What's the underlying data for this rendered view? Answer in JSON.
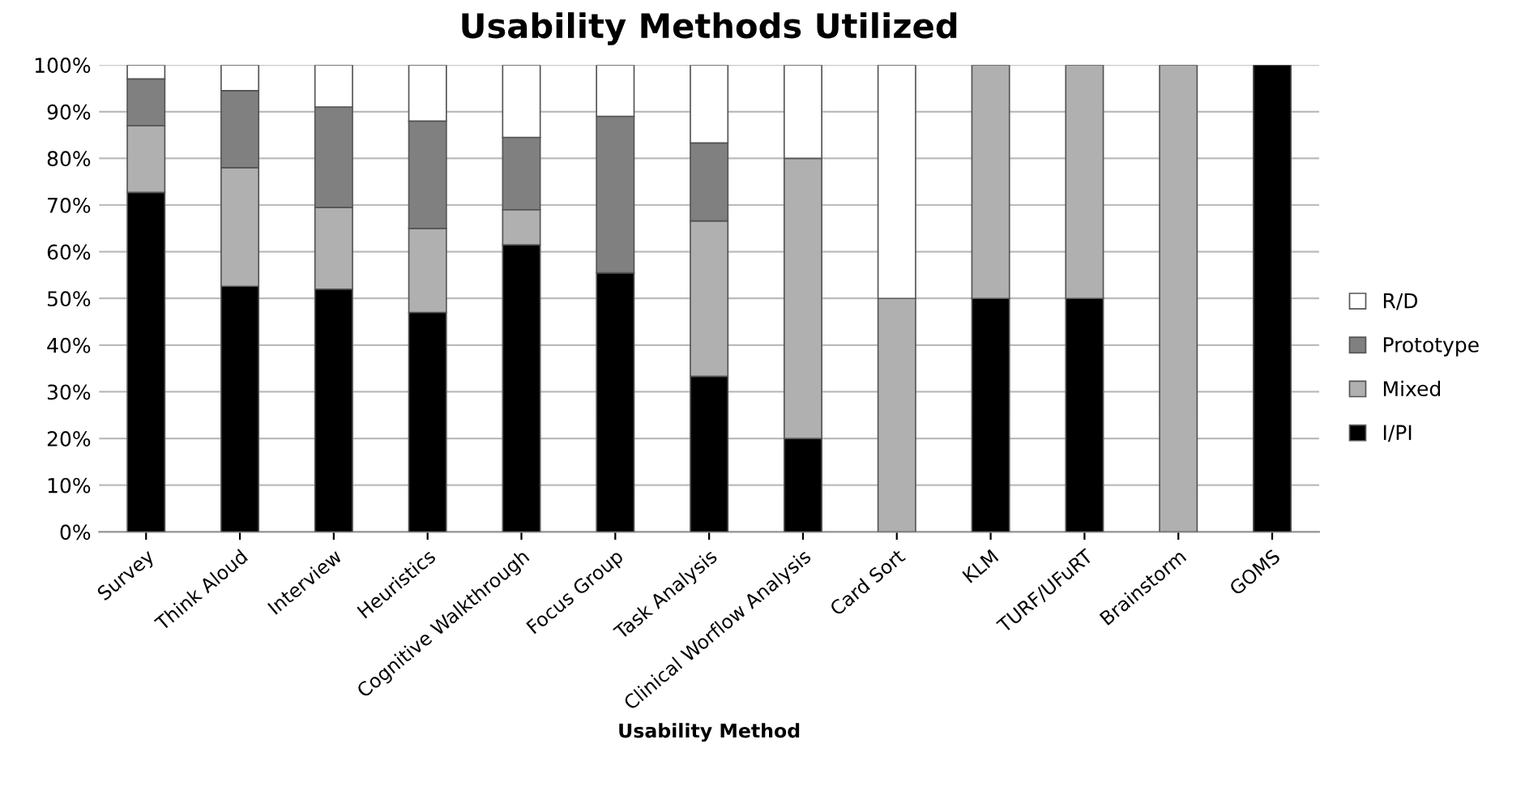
{
  "chart_data": {
    "type": "bar",
    "stacked": true,
    "title": "Usability Methods Utilized",
    "xlabel": "Usability Method",
    "categories": [
      "Survey",
      "Think Aloud",
      "Interview",
      "Heuristics",
      "Cognitive Walkthrough",
      "Focus Group",
      "Task Analysis",
      "Clinical Worflow Analysis",
      "Card Sort",
      "KLM",
      "TURF/UFuRT",
      "Brainstorm",
      "GOMS"
    ],
    "series": [
      {
        "name": "I/PI",
        "color": "#000000",
        "values": [
          72.7,
          52.6,
          52,
          47,
          61.5,
          55.5,
          33.3,
          20,
          0,
          50,
          50,
          0,
          100
        ]
      },
      {
        "name": "Mixed",
        "color": "#b0b0b0",
        "values": [
          14.3,
          25.4,
          17.5,
          18,
          7.5,
          0,
          33.3,
          60,
          50,
          50,
          50,
          100,
          0
        ]
      },
      {
        "name": "Prototype",
        "color": "#808080",
        "values": [
          10,
          16.5,
          21.5,
          23,
          15.5,
          33.5,
          16.7,
          0,
          0,
          0,
          0,
          0,
          0
        ]
      },
      {
        "name": "R/D",
        "color": "#ffffff",
        "values": [
          3,
          5.5,
          9,
          12,
          15.5,
          11,
          16.7,
          20,
          50,
          0,
          0,
          0,
          0
        ]
      }
    ],
    "ylim": [
      0,
      100
    ],
    "yticks": [
      {
        "value": 0,
        "label": "0%"
      },
      {
        "value": 10,
        "label": "10%"
      },
      {
        "value": 20,
        "label": "20%"
      },
      {
        "value": 30,
        "label": "30%"
      },
      {
        "value": 40,
        "label": "40%"
      },
      {
        "value": 50,
        "label": "50%"
      },
      {
        "value": 60,
        "label": "60%"
      },
      {
        "value": 70,
        "label": "70%"
      },
      {
        "value": 80,
        "label": "80%"
      },
      {
        "value": 90,
        "label": "90%"
      },
      {
        "value": 100,
        "label": "100%"
      }
    ],
    "grid": "y",
    "legend": "right"
  }
}
